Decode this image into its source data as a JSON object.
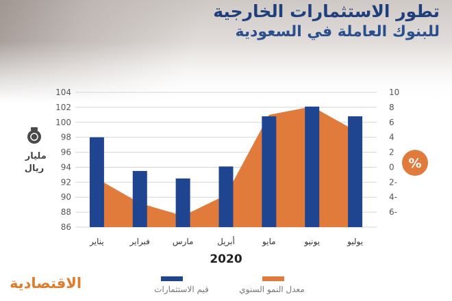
{
  "header": {
    "title": "تطور الاستثمارات الخارجية",
    "subtitle": "للبنوك العاملة في السعودية"
  },
  "brand": {
    "name": "الاقتصادية"
  },
  "colors": {
    "bar": "#1f4591",
    "area": "#e07b3c",
    "grid": "#d4d4d4",
    "title": "#1e3f7c"
  },
  "icons": {
    "left_unit": "money-bag-icon",
    "right_unit": "percent-circle-icon"
  },
  "chart_data": {
    "type": "bar",
    "categories": [
      "يناير",
      "فبراير",
      "مارس",
      "أبريل",
      "مايو",
      "يونيو",
      "يوليو"
    ],
    "xlabel": "2020",
    "series": [
      {
        "name": "قيم الاستثمارات",
        "type": "bar",
        "axis": "left",
        "values": [
          98,
          93.5,
          92.5,
          94.1,
          100.8,
          102.1,
          100.8
        ]
      },
      {
        "name": "معدل النمو السنوي",
        "type": "area",
        "axis": "right",
        "values": [
          -1.5,
          -4.8,
          -6.5,
          -3.7,
          7,
          8.1,
          4.9
        ]
      }
    ],
    "y_left": {
      "label": "مليار ريال",
      "ylim": [
        86,
        104
      ],
      "ticks": [
        "86",
        "88",
        "90",
        "92",
        "94",
        "96",
        "98",
        "100",
        "102",
        "104"
      ]
    },
    "y_right": {
      "label": "%",
      "ylim": [
        -8,
        10
      ],
      "ticks": [
        "6-",
        "4-",
        "2-",
        "0",
        "2",
        "4",
        "6",
        "8",
        "10"
      ]
    },
    "grid": true,
    "legend_position": "bottom"
  }
}
